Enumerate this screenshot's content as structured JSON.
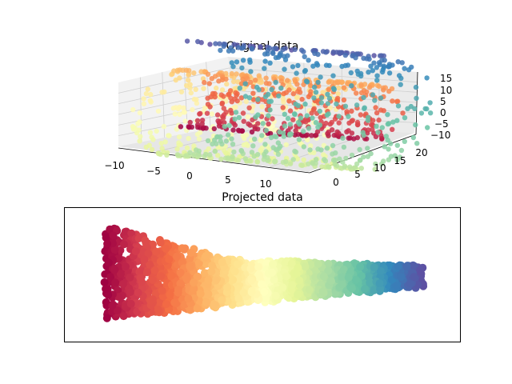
{
  "figure": {
    "colormap": "Spectral",
    "colormap_stops": [
      "#9e0142",
      "#d53e4f",
      "#f46d43",
      "#fdae61",
      "#fee08b",
      "#ffffbf",
      "#e6f598",
      "#abdda4",
      "#66c2a5",
      "#3288bd",
      "#5e4fa2"
    ]
  },
  "chart_data": [
    {
      "type": "scatter",
      "projection": "3d",
      "title": "Original data",
      "shape": "swiss roll",
      "x_ticks": [
        "−10",
        "−5",
        "0",
        "5",
        "10"
      ],
      "y_ticks": [
        "0",
        "5",
        "10",
        "15",
        "20"
      ],
      "z_ticks": [
        "15",
        "10",
        "5",
        "0",
        "−5",
        "−10"
      ],
      "xlim": [
        -11,
        14
      ],
      "ylim": [
        0,
        21
      ],
      "zlim": [
        -11,
        15
      ],
      "grid": true,
      "color_by": "position along roll (red at inner end, purple at outer end)"
    },
    {
      "type": "scatter",
      "title": "Projected data",
      "x_ticks": [],
      "y_ticks": [],
      "grid": false,
      "color_by": "same colors as original data, gradient red (left) to purple (right)"
    }
  ]
}
